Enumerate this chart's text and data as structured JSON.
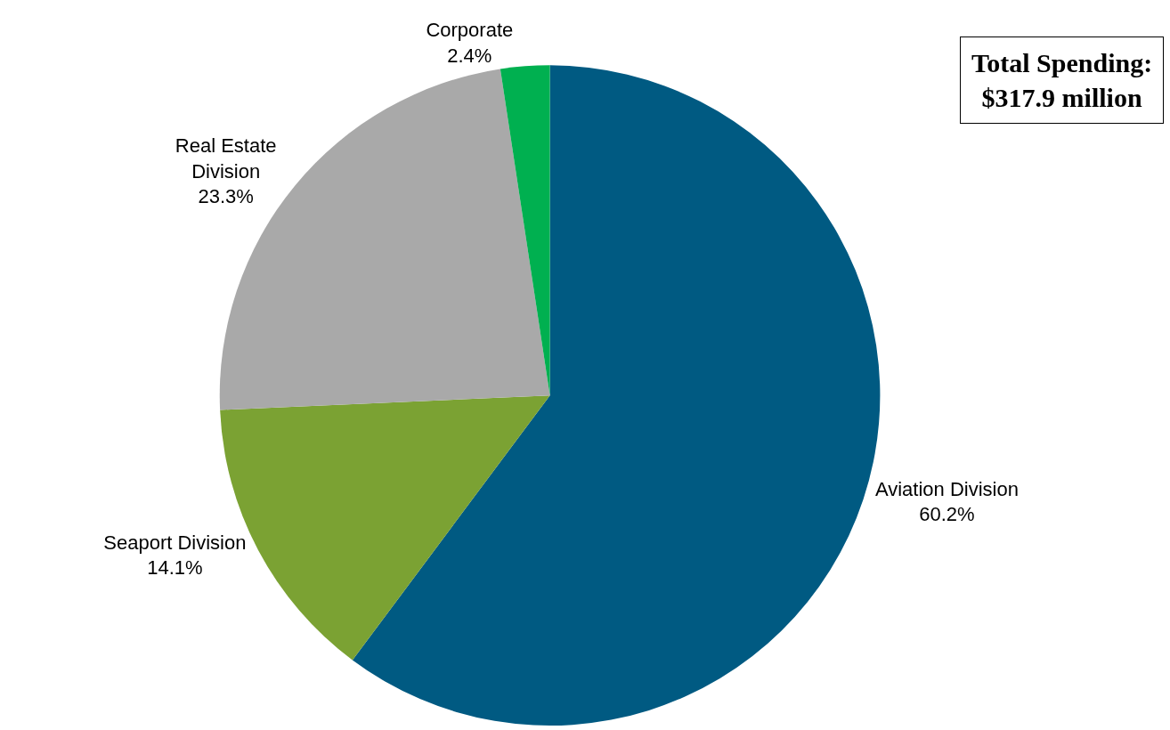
{
  "chart_data": {
    "type": "pie",
    "categories": [
      "Aviation Division",
      "Seaport Division",
      "Real Estate\nDivision",
      "Corporate"
    ],
    "values": [
      60.2,
      14.1,
      23.3,
      2.4
    ],
    "value_labels": [
      "60.2%",
      "14.1%",
      "23.3%",
      "2.4%"
    ],
    "colors": [
      "#005a82",
      "#7ba233",
      "#a9a9a9",
      "#00b050"
    ],
    "annotations": [
      "Total Spending:\n$317.9 million"
    ],
    "legend": false
  }
}
